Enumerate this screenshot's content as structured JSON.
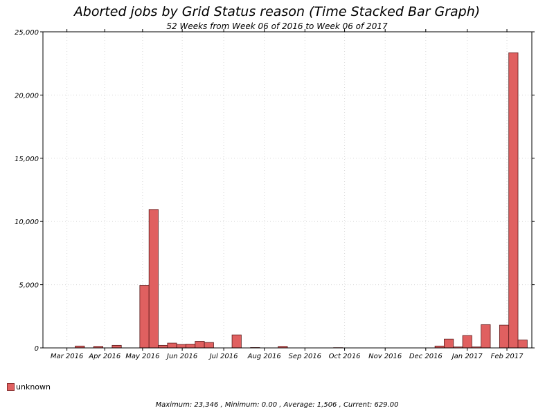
{
  "chart_data": {
    "type": "bar",
    "title": "Aborted jobs by Grid Status reason (Time Stacked Bar Graph)",
    "subtitle": "52 Weeks from Week 06 of 2016 to Week 06 of 2017",
    "xlabel": "",
    "ylabel": "",
    "ylim": [
      0,
      25000
    ],
    "yticks": [
      "0",
      "5,000",
      "10,000",
      "15,000",
      "20,000",
      "25,000"
    ],
    "ytick_values": [
      0,
      5000,
      10000,
      15000,
      20000,
      25000
    ],
    "month_labels": [
      "Mar 2016",
      "Apr 2016",
      "May 2016",
      "Jun 2016",
      "Jul 2016",
      "Aug 2016",
      "Sep 2016",
      "Oct 2016",
      "Nov 2016",
      "Dec 2016",
      "Jan 2017",
      "Feb 2017"
    ],
    "month_positions": [
      2.6,
      6.7,
      10.8,
      15.1,
      19.6,
      24.0,
      28.4,
      32.7,
      37.1,
      41.5,
      46.0,
      50.3
    ],
    "weeks": 52,
    "grid": true,
    "legend_position": "bottom-left",
    "bar_color": "#e06060",
    "bar_edge": "#5a1a1a",
    "series": [
      {
        "name": "unknown",
        "values": [
          0,
          0,
          0,
          150,
          0,
          120,
          0,
          200,
          0,
          0,
          4950,
          10950,
          200,
          380,
          280,
          300,
          520,
          430,
          0,
          0,
          1030,
          0,
          30,
          0,
          0,
          120,
          0,
          0,
          0,
          0,
          0,
          20,
          0,
          0,
          0,
          0,
          0,
          0,
          0,
          0,
          0,
          0,
          150,
          700,
          80,
          980,
          80,
          1840,
          0,
          100,
          0,
          1020
        ]
      }
    ]
  },
  "extra_bars": [
    1800,
    23346,
    629
  ],
  "legend": {
    "label": "unknown"
  },
  "footer": "Maximum: 23,346 , Minimum: 0.00 , Average: 1,506 , Current: 629.00"
}
